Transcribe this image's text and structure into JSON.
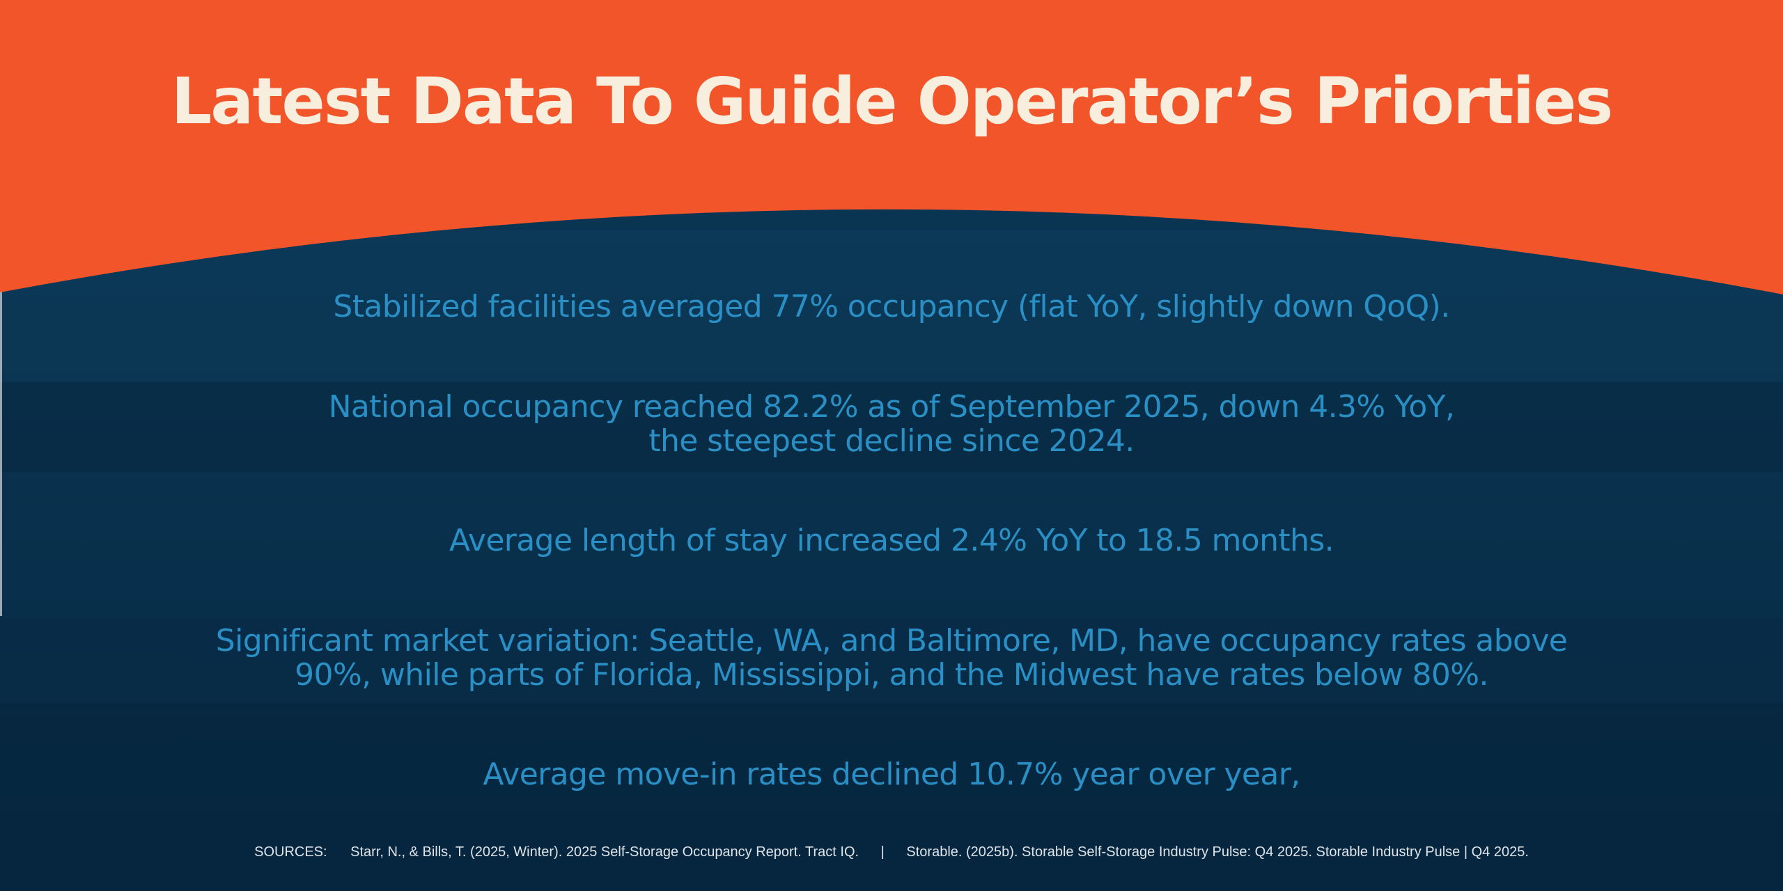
{
  "title": "Latest Data To Guide Operator’s Priorties",
  "colors": {
    "header": "#f2552a",
    "title_text": "#f8eedd",
    "background": "#0b3450",
    "stat_text": "#2a8fc4",
    "sources_text": "#dfe4e8"
  },
  "stats": [
    {
      "lines": [
        "Stabilized facilities averaged 77% occupancy (flat YoY, slightly down QoQ)."
      ]
    },
    {
      "lines": [
        "National occupancy reached 82.2% as of September 2025, down 4.3% YoY,",
        "the steepest decline since 2024."
      ]
    },
    {
      "lines": [
        "Average length of stay increased 2.4% YoY to 18.5 months."
      ]
    },
    {
      "lines": [
        "Significant market variation: Seattle, WA, and Baltimore, MD, have occupancy rates above",
        "90%, while parts of Florida, Mississippi, and the Midwest have rates below 80%."
      ]
    },
    {
      "lines": [
        "Average move-in rates declined 10.7% year over year,"
      ]
    }
  ],
  "sources": {
    "label": "SOURCES:",
    "items": [
      "Starr, N., & Bills, T. (2025, Winter). 2025 Self-Storage Occupancy Report. Tract IQ.",
      "Storable. (2025b). Storable Self-Storage Industry Pulse: Q4 2025. Storable Industry Pulse | Q4 2025."
    ],
    "separator": "|"
  }
}
